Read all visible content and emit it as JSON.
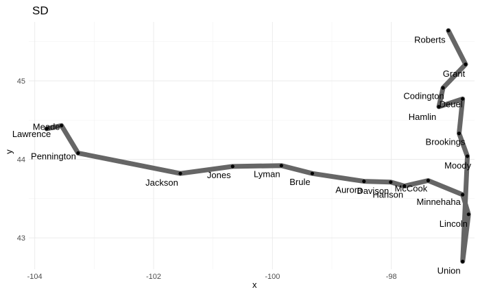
{
  "chart_data": {
    "type": "line",
    "title": "SD",
    "xlabel": "x",
    "ylabel": "y",
    "xlim": [
      -104.1,
      -96.6
    ],
    "ylim": [
      42.6,
      45.75
    ],
    "x_ticks": [
      -104,
      -102,
      -100,
      -98
    ],
    "x_tick_labels": [
      "-104",
      "-102",
      "-100",
      "-98"
    ],
    "y_ticks": [
      43,
      44,
      45
    ],
    "y_tick_labels": [
      "43",
      "44",
      "45"
    ],
    "grid": true,
    "line_color": "#666666",
    "point_color": "#000000",
    "points": [
      {
        "label": "Lawrence",
        "x": -103.8,
        "y": 44.39
      },
      {
        "label": "Meade",
        "x": -103.55,
        "y": 44.43
      },
      {
        "label": "Pennington",
        "x": -103.27,
        "y": 44.08
      },
      {
        "label": "Jackson",
        "x": -101.55,
        "y": 43.82
      },
      {
        "label": "Jones",
        "x": -100.67,
        "y": 43.91
      },
      {
        "label": "Lyman",
        "x": -99.85,
        "y": 43.92
      },
      {
        "label": "Brule",
        "x": -99.33,
        "y": 43.82
      },
      {
        "label": "Aurora",
        "x": -98.46,
        "y": 43.72
      },
      {
        "label": "Davison",
        "x": -98.01,
        "y": 43.71
      },
      {
        "label": "Hanson",
        "x": -97.78,
        "y": 43.66
      },
      {
        "label": "McCook",
        "x": -97.38,
        "y": 43.73
      },
      {
        "label": "Minnehaha",
        "x": -96.8,
        "y": 43.55
      },
      {
        "label": "Lincoln",
        "x": -96.7,
        "y": 43.3
      },
      {
        "label": "Union",
        "x": -96.8,
        "y": 42.7
      },
      {
        "label": "Moody",
        "x": -96.72,
        "y": 44.04
      },
      {
        "label": "Brookings",
        "x": -96.86,
        "y": 44.33
      },
      {
        "label": "Deuel",
        "x": -96.8,
        "y": 44.77
      },
      {
        "label": "Hamlin",
        "x": -97.2,
        "y": 44.67
      },
      {
        "label": "Codington",
        "x": -97.13,
        "y": 44.91
      },
      {
        "label": "Grant",
        "x": -96.75,
        "y": 45.21
      },
      {
        "label": "Roberts",
        "x": -97.04,
        "y": 45.64
      }
    ]
  }
}
